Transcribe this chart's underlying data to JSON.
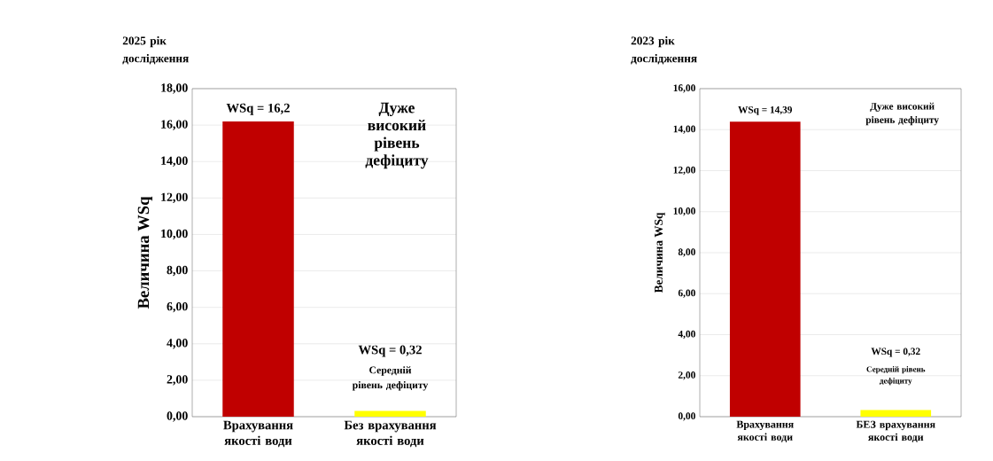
{
  "chart_data": [
    {
      "type": "bar",
      "title": "2025 рік дослідження",
      "ylabel": "Величина WSq",
      "categories": [
        "Врахування якості води",
        "Без врахування якості води"
      ],
      "values": [
        16.2,
        0.32
      ],
      "colors": [
        "#c00000",
        "#ffff00"
      ],
      "value_labels": [
        "WSq = 16,2",
        null
      ],
      "annotations": [
        "Дуже високий рівень дефіциту",
        "WSq = 0,32",
        "Середній рівень дефіциту"
      ],
      "ylim": [
        0,
        18
      ],
      "yticks": [
        {
          "value": 0,
          "label": "0,00"
        },
        {
          "value": 2,
          "label": "2,00"
        },
        {
          "value": 4,
          "label": "4,00"
        },
        {
          "value": 6,
          "label": "6,00"
        },
        {
          "value": 8,
          "label": "8,00"
        },
        {
          "value": 10,
          "label": "10,00"
        },
        {
          "value": 12,
          "label": "12,00"
        },
        {
          "value": 14,
          "label": "14,00"
        },
        {
          "value": 16,
          "label": "16,00"
        },
        {
          "value": 18,
          "label": "18,00"
        }
      ],
      "grid": "y"
    },
    {
      "type": "bar",
      "title": "2023 рік дослідження",
      "ylabel": "Величина WSq",
      "categories": [
        "Врахування якості води",
        "БЕЗ врахування якості води"
      ],
      "values": [
        14.39,
        0.32
      ],
      "colors": [
        "#c00000",
        "#ffff00"
      ],
      "value_labels": [
        "WSq = 14,39",
        null
      ],
      "annotations": [
        "Дуже високий рівень дефіциту",
        "WSq = 0,32",
        "Середній рівень дефіциту"
      ],
      "ylim": [
        0,
        16
      ],
      "yticks": [
        {
          "value": 0,
          "label": "0,00"
        },
        {
          "value": 2,
          "label": "2,00"
        },
        {
          "value": 4,
          "label": "4,00"
        },
        {
          "value": 6,
          "label": "6,00"
        },
        {
          "value": 8,
          "label": "8,00"
        },
        {
          "value": 10,
          "label": "10,00"
        },
        {
          "value": 12,
          "label": "12,00"
        },
        {
          "value": 14,
          "label": "14,00"
        },
        {
          "value": 16,
          "label": "16,00"
        }
      ],
      "grid": "y"
    }
  ]
}
